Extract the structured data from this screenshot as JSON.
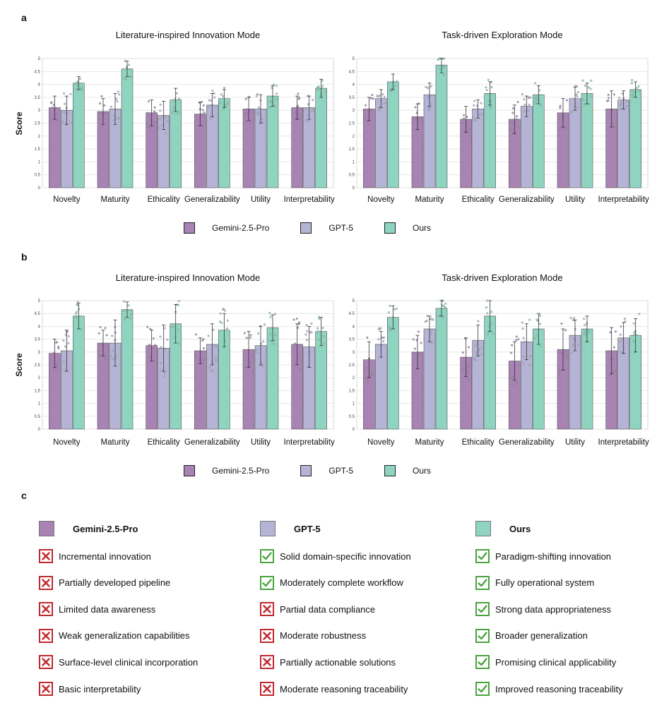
{
  "panels": {
    "a": "a",
    "b": "b",
    "c": "c"
  },
  "colors": {
    "gemini": "#a883b4",
    "gpt": "#b5b4d6",
    "ours": "#8fd4c0",
    "cross": "#c0282e",
    "check": "#4aa33f"
  },
  "legend": {
    "gemini": "Gemini-2.5-Pro",
    "gpt": "GPT-5",
    "ours": "Ours"
  },
  "chart_data": [
    {
      "panel": "a",
      "type": "bar",
      "title": "Literature-inspired Innovation Mode",
      "ylabel": "Score",
      "ylim": [
        0,
        5
      ],
      "yticks": [
        "0",
        "0.5",
        "1",
        "1.5",
        "2",
        "2.5",
        "3",
        "3.5",
        "4",
        "4.5",
        "5"
      ],
      "categories": [
        "Novelty",
        "Maturity",
        "Ethicality",
        "Generalizability",
        "Utility",
        "Interpretability"
      ],
      "series": [
        {
          "name": "Gemini-2.5-Pro",
          "values": [
            3.1,
            2.95,
            2.9,
            2.85,
            3.05,
            3.1
          ],
          "err": [
            0.45,
            0.5,
            0.5,
            0.45,
            0.45,
            0.45
          ]
        },
        {
          "name": "GPT-5",
          "values": [
            3.0,
            3.05,
            2.8,
            3.2,
            3.05,
            3.1
          ],
          "err": [
            0.55,
            0.6,
            0.55,
            0.45,
            0.55,
            0.45
          ]
        },
        {
          "name": "Ours",
          "values": [
            4.05,
            4.6,
            3.4,
            3.45,
            3.55,
            3.85
          ],
          "err": [
            0.25,
            0.3,
            0.45,
            0.35,
            0.4,
            0.35
          ]
        }
      ]
    },
    {
      "panel": "a",
      "type": "bar",
      "title": "Task-driven Exploration Mode",
      "ylabel": "",
      "ylim": [
        0,
        5
      ],
      "yticks": [
        "0",
        "0.5",
        "1",
        "1.5",
        "2",
        "2.5",
        "3",
        "3.5",
        "4",
        "4.5",
        "5"
      ],
      "categories": [
        "Novelty",
        "Maturity",
        "Ethicality",
        "Generalizability",
        "Utility",
        "Interpretability"
      ],
      "series": [
        {
          "name": "Gemini-2.5-Pro",
          "values": [
            3.05,
            2.75,
            2.65,
            2.65,
            2.9,
            3.05
          ],
          "err": [
            0.45,
            0.5,
            0.5,
            0.55,
            0.55,
            0.7
          ]
        },
        {
          "name": "GPT-5",
          "values": [
            3.45,
            3.6,
            3.05,
            3.15,
            3.45,
            3.4
          ],
          "err": [
            0.35,
            0.45,
            0.35,
            0.4,
            0.45,
            0.35
          ]
        },
        {
          "name": "Ours",
          "values": [
            4.1,
            4.75,
            3.65,
            3.6,
            3.65,
            3.8
          ],
          "err": [
            0.3,
            0.3,
            0.45,
            0.35,
            0.4,
            0.3
          ]
        }
      ]
    },
    {
      "panel": "b",
      "type": "bar",
      "title": "Literature-inspired Innovation Mode",
      "ylabel": "Score",
      "ylim": [
        0,
        5
      ],
      "yticks": [
        "0",
        "0.5",
        "1",
        "1.5",
        "2",
        "2.5",
        "3",
        "3.5",
        "4",
        "4.5",
        "5"
      ],
      "categories": [
        "Novelty",
        "Maturity",
        "Ethicality",
        "Generalizability",
        "Utility",
        "Interpretability"
      ],
      "series": [
        {
          "name": "Gemini-2.5-Pro",
          "values": [
            2.95,
            3.35,
            3.25,
            3.05,
            3.1,
            3.3
          ],
          "err": [
            0.55,
            0.5,
            0.6,
            0.5,
            0.7,
            0.8
          ]
        },
        {
          "name": "GPT-5",
          "values": [
            3.05,
            3.35,
            3.15,
            3.3,
            3.25,
            3.2
          ],
          "err": [
            0.8,
            0.9,
            0.9,
            0.8,
            0.75,
            0.8
          ]
        },
        {
          "name": "Ours",
          "values": [
            4.4,
            4.65,
            4.1,
            3.85,
            3.95,
            3.8
          ],
          "err": [
            0.5,
            0.3,
            0.75,
            0.65,
            0.5,
            0.55
          ]
        }
      ]
    },
    {
      "panel": "b",
      "type": "bar",
      "title": "Task-driven Exploration Mode",
      "ylabel": "",
      "ylim": [
        0,
        5
      ],
      "yticks": [
        "0",
        "0.5",
        "1",
        "1.5",
        "2",
        "2.5",
        "3",
        "3.5",
        "4",
        "4.5",
        "5"
      ],
      "categories": [
        "Novelty",
        "Maturity",
        "Ethicality",
        "Generalizability",
        "Utility",
        "Interpretability"
      ],
      "series": [
        {
          "name": "Gemini-2.5-Pro",
          "values": [
            2.7,
            3.0,
            2.8,
            2.65,
            3.1,
            3.05
          ],
          "err": [
            0.7,
            0.65,
            0.75,
            0.75,
            0.8,
            0.9
          ]
        },
        {
          "name": "GPT-5",
          "values": [
            3.3,
            3.9,
            3.45,
            3.4,
            3.65,
            3.55
          ],
          "err": [
            0.5,
            0.5,
            0.6,
            0.7,
            0.6,
            0.6
          ]
        },
        {
          "name": "Ours",
          "values": [
            4.35,
            4.7,
            4.4,
            3.9,
            3.9,
            3.65
          ],
          "err": [
            0.45,
            0.3,
            0.6,
            0.6,
            0.5,
            0.65
          ]
        }
      ]
    }
  ],
  "comparison": {
    "columns": [
      {
        "name": "Gemini-2.5-Pro",
        "color": "#a883b4",
        "items": [
          {
            "mark": "cross",
            "text": "Incremental innovation"
          },
          {
            "mark": "cross",
            "text": "Partially developed pipeline"
          },
          {
            "mark": "cross",
            "text": "Limited data awareness"
          },
          {
            "mark": "cross",
            "text": "Weak generalization capabilities"
          },
          {
            "mark": "cross",
            "text": "Surface-level clinical incorporation"
          },
          {
            "mark": "cross",
            "text": "Basic interpretability"
          }
        ]
      },
      {
        "name": "GPT-5",
        "color": "#b5b4d6",
        "items": [
          {
            "mark": "check",
            "text": "Solid domain-specific innovation"
          },
          {
            "mark": "check",
            "text": "Moderately complete workflow"
          },
          {
            "mark": "cross",
            "text": "Partial data compliance"
          },
          {
            "mark": "cross",
            "text": "Moderate robustness"
          },
          {
            "mark": "cross",
            "text": "Partially actionable solutions"
          },
          {
            "mark": "cross",
            "text": "Moderate reasoning traceability"
          }
        ]
      },
      {
        "name": "Ours",
        "color": "#8fd4c0",
        "items": [
          {
            "mark": "check",
            "text": "Paradigm-shifting innovation"
          },
          {
            "mark": "check",
            "text": "Fully operational system"
          },
          {
            "mark": "check",
            "text": "Strong data appropriateness"
          },
          {
            "mark": "check",
            "text": "Broader generalization"
          },
          {
            "mark": "check",
            "text": "Promising clinical applicability"
          },
          {
            "mark": "check",
            "text": "Improved reasoning traceability"
          }
        ]
      }
    ]
  }
}
